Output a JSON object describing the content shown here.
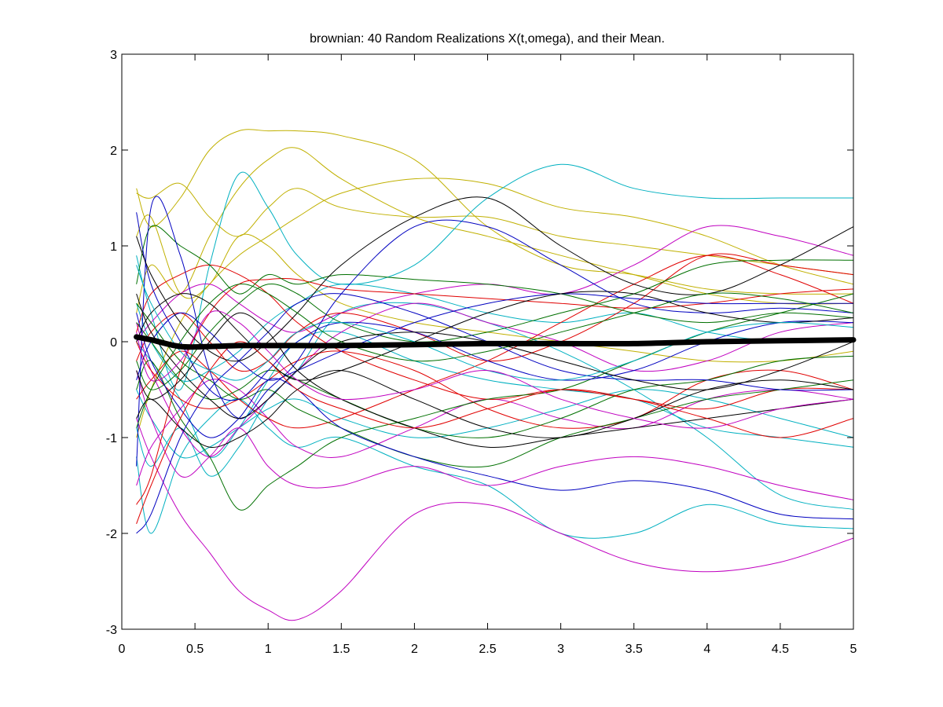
{
  "chart_data": {
    "type": "line",
    "title": "brownian: 40 Random Realizations X(t,omega), and their Mean.",
    "xlabel": "",
    "ylabel": "",
    "xlim": [
      0,
      5
    ],
    "ylim": [
      -3,
      3
    ],
    "xticks": [
      "0",
      "0.5",
      "1",
      "1.5",
      "2",
      "2.5",
      "3",
      "3.5",
      "4",
      "4.5",
      "5"
    ],
    "yticks": [
      "-3",
      "-2",
      "-1",
      "0",
      "1",
      "2",
      "3"
    ],
    "grid": false,
    "legend": "none",
    "x": [
      0.1,
      0.2,
      0.4,
      0.6,
      0.8,
      1.0,
      1.2,
      1.5,
      2.0,
      2.5,
      3.0,
      3.5,
      4.0,
      4.5,
      5.0
    ],
    "series": [
      {
        "color": "#c0b000",
        "values": [
          1.55,
          1.5,
          1.65,
          1.3,
          1.1,
          1.4,
          1.6,
          1.4,
          1.3,
          1.3,
          1.1,
          1.0,
          0.9,
          0.8,
          0.7
        ]
      },
      {
        "color": "#c0b000",
        "values": [
          1.6,
          1.2,
          1.5,
          2.0,
          2.2,
          2.2,
          2.2,
          2.15,
          1.9,
          1.2,
          0.8,
          0.7,
          0.55,
          0.5,
          0.5
        ]
      },
      {
        "color": "#c0b000",
        "values": [
          0.3,
          0.8,
          0.5,
          1.1,
          1.6,
          1.9,
          2.02,
          1.7,
          1.3,
          1.1,
          0.9,
          0.7,
          0.5,
          0.4,
          0.4
        ]
      },
      {
        "color": "#c0b000",
        "values": [
          1.1,
          1.3,
          0.5,
          0.6,
          1.1,
          1.0,
          0.7,
          0.4,
          0.2,
          0.1,
          0.0,
          -0.1,
          -0.2,
          -0.2,
          -0.1
        ]
      },
      {
        "color": "#c0b000",
        "values": [
          -1.0,
          -0.5,
          0.2,
          0.6,
          0.9,
          1.1,
          1.3,
          1.55,
          1.7,
          1.65,
          1.4,
          1.3,
          1.1,
          0.8,
          0.6
        ]
      },
      {
        "color": "#00b0c0",
        "values": [
          0.9,
          0.3,
          -0.5,
          0.8,
          1.75,
          1.4,
          0.9,
          0.6,
          0.8,
          1.5,
          1.85,
          1.6,
          1.5,
          1.5,
          1.5
        ]
      },
      {
        "color": "#00b0c0",
        "values": [
          -0.9,
          -1.3,
          -0.9,
          -1.4,
          -1.1,
          -0.6,
          -0.3,
          0.3,
          0.4,
          0.2,
          -0.1,
          -0.5,
          -1.0,
          -1.6,
          -1.75
        ]
      },
      {
        "color": "#00b0c0",
        "values": [
          -1.2,
          -2.0,
          -1.2,
          -0.8,
          -0.6,
          -0.9,
          -1.1,
          -1.0,
          -1.3,
          -1.5,
          -2.0,
          -2.0,
          -1.7,
          -1.9,
          -1.95
        ]
      },
      {
        "color": "#00b0c0",
        "values": [
          0.0,
          -0.2,
          -0.6,
          -1.2,
          -0.9,
          -0.4,
          0.0,
          0.1,
          -0.2,
          -0.4,
          -0.5,
          -0.6,
          -0.9,
          -1.0,
          -1.1
        ]
      },
      {
        "color": "#00b0c0",
        "values": [
          0.4,
          0.0,
          -0.4,
          -0.3,
          -0.1,
          0.2,
          0.4,
          0.6,
          0.5,
          0.3,
          0.2,
          0.3,
          0.1,
          0.0,
          0.0
        ]
      },
      {
        "color": "#00b0c0",
        "values": [
          -0.5,
          -0.8,
          -1.2,
          -1.1,
          -0.9,
          -0.7,
          -0.6,
          -0.8,
          -1.0,
          -0.9,
          -0.7,
          -0.5,
          -0.6,
          -0.8,
          -1.0
        ]
      },
      {
        "color": "#c000c0",
        "values": [
          -0.8,
          -1.2,
          -1.8,
          -2.2,
          -2.6,
          -2.8,
          -2.9,
          -2.6,
          -1.8,
          -1.7,
          -2.0,
          -2.3,
          -2.4,
          -2.3,
          -2.05
        ]
      },
      {
        "color": "#c000c0",
        "values": [
          -0.3,
          -0.8,
          -1.4,
          -1.2,
          -0.9,
          -1.3,
          -1.5,
          -1.5,
          -1.3,
          -1.5,
          -1.3,
          -1.2,
          -1.3,
          -1.5,
          -1.65
        ]
      },
      {
        "color": "#c000c0",
        "values": [
          0.0,
          0.2,
          0.5,
          0.6,
          0.4,
          0.2,
          0.1,
          0.3,
          0.5,
          0.6,
          0.5,
          0.8,
          1.2,
          1.1,
          0.9
        ]
      },
      {
        "color": "#c000c0",
        "values": [
          -1.5,
          -1.1,
          -0.7,
          -0.4,
          -0.5,
          -0.8,
          -1.1,
          -1.2,
          -0.9,
          -0.6,
          -0.8,
          -0.9,
          -0.6,
          -0.5,
          -0.6
        ]
      },
      {
        "color": "#c000c0",
        "values": [
          0.2,
          -0.3,
          -0.9,
          -1.2,
          -0.9,
          -0.6,
          -0.3,
          0.1,
          0.4,
          0.2,
          0.0,
          -0.3,
          -0.2,
          0.1,
          0.2
        ]
      },
      {
        "color": "#e00000",
        "values": [
          -1.7,
          -1.4,
          -0.3,
          0.3,
          0.6,
          0.65,
          0.65,
          0.55,
          0.5,
          0.45,
          0.4,
          0.35,
          0.4,
          0.5,
          0.55
        ]
      },
      {
        "color": "#e00000",
        "values": [
          0.1,
          0.5,
          0.7,
          0.8,
          0.7,
          0.5,
          0.2,
          -0.1,
          -0.4,
          -0.6,
          -0.5,
          -0.6,
          -0.7,
          -0.5,
          -0.5
        ]
      },
      {
        "color": "#e00000",
        "values": [
          -0.6,
          -0.4,
          -0.1,
          -0.3,
          -0.6,
          -0.8,
          -0.9,
          -0.8,
          -0.5,
          -0.2,
          0.2,
          0.6,
          0.9,
          0.7,
          0.4
        ]
      },
      {
        "color": "#e00000",
        "values": [
          0.0,
          -0.3,
          -0.6,
          -0.7,
          -0.6,
          -0.4,
          -0.2,
          -0.1,
          -0.3,
          -0.7,
          -0.9,
          -0.8,
          -0.4,
          -0.3,
          -0.5
        ]
      },
      {
        "color": "#e00000",
        "values": [
          -0.2,
          0.1,
          0.3,
          0.0,
          -0.3,
          -0.2,
          0.1,
          0.3,
          0.1,
          -0.2,
          0.0,
          0.4,
          0.9,
          0.8,
          0.7
        ]
      },
      {
        "color": "#007000",
        "values": [
          0.6,
          1.2,
          1.0,
          0.8,
          0.5,
          0.7,
          0.6,
          0.7,
          0.65,
          0.6,
          0.5,
          0.3,
          0.2,
          0.3,
          0.25
        ]
      },
      {
        "color": "#007000",
        "values": [
          -0.5,
          -0.2,
          -0.8,
          -1.2,
          -1.75,
          -1.5,
          -1.3,
          -1.0,
          -0.8,
          -0.6,
          -0.5,
          -0.2,
          0.1,
          0.3,
          0.5
        ]
      },
      {
        "color": "#007000",
        "values": [
          0.4,
          0.2,
          -0.2,
          -0.4,
          -0.6,
          -0.5,
          -0.7,
          -0.9,
          -1.2,
          -1.3,
          -1.0,
          -0.8,
          -0.6,
          -0.5,
          -0.4
        ]
      },
      {
        "color": "#007000",
        "values": [
          -0.2,
          -0.5,
          -0.3,
          0.1,
          0.4,
          0.6,
          0.5,
          0.2,
          0.0,
          0.1,
          0.3,
          0.5,
          0.8,
          0.85,
          0.85
        ]
      },
      {
        "color": "#007000",
        "values": [
          0.2,
          0.0,
          -0.4,
          -0.6,
          -0.5,
          -0.3,
          -0.4,
          -0.6,
          -0.9,
          -1.0,
          -0.8,
          -0.5,
          -0.4,
          -0.2,
          -0.15
        ]
      },
      {
        "color": "#0000c0",
        "values": [
          -1.3,
          1.4,
          0.9,
          -0.3,
          -0.8,
          -0.5,
          -0.2,
          0.5,
          1.2,
          1.2,
          0.8,
          0.4,
          0.3,
          0.35,
          0.3
        ]
      },
      {
        "color": "#0000c0",
        "values": [
          -2.0,
          -1.8,
          -1.0,
          -0.5,
          -0.2,
          0.1,
          0.4,
          0.5,
          0.3,
          0.0,
          -0.3,
          -0.4,
          -0.4,
          -0.5,
          -0.5
        ]
      },
      {
        "color": "#0000c0",
        "values": [
          0.3,
          -0.2,
          -0.7,
          -1.0,
          -0.8,
          -0.4,
          -0.5,
          -0.9,
          -1.2,
          -1.4,
          -1.55,
          -1.45,
          -1.55,
          -1.8,
          -1.85
        ]
      },
      {
        "color": "#0000c0",
        "values": [
          1.35,
          0.6,
          0.0,
          -0.5,
          -0.6,
          -0.3,
          0.0,
          0.2,
          0.1,
          -0.2,
          -0.4,
          -0.3,
          0.0,
          0.2,
          0.2
        ]
      },
      {
        "color": "#0000c0",
        "values": [
          -0.4,
          0.0,
          0.3,
          0.1,
          -0.2,
          -0.4,
          -0.3,
          -0.1,
          0.2,
          0.4,
          0.5,
          0.45,
          0.4,
          0.4,
          0.4
        ]
      },
      {
        "color": "#000000",
        "values": [
          1.1,
          0.7,
          0.2,
          -0.1,
          -0.2,
          0.0,
          0.3,
          0.8,
          1.3,
          1.5,
          1.0,
          0.6,
          0.5,
          0.8,
          1.2
        ]
      },
      {
        "color": "#000000",
        "values": [
          0.5,
          0.1,
          -0.3,
          -0.6,
          -0.8,
          -0.6,
          -0.3,
          0.0,
          0.1,
          0.0,
          -0.2,
          -0.4,
          -0.5,
          -0.3,
          0.0
        ]
      },
      {
        "color": "#000000",
        "values": [
          -0.8,
          -0.6,
          -0.9,
          -1.1,
          -1.0,
          -0.8,
          -0.5,
          -0.3,
          -0.6,
          -0.9,
          -1.0,
          -0.8,
          -0.5,
          -0.4,
          -0.5
        ]
      },
      {
        "color": "#000000",
        "values": [
          0.0,
          0.3,
          0.5,
          0.4,
          0.1,
          -0.2,
          -0.4,
          -0.3,
          0.0,
          0.3,
          0.5,
          0.5,
          0.3,
          0.2,
          0.25
        ]
      },
      {
        "color": "#000000",
        "values": [
          -0.3,
          -0.6,
          -0.4,
          0.0,
          0.3,
          0.1,
          -0.3,
          -0.6,
          -0.9,
          -1.1,
          -1.0,
          -0.9,
          -0.8,
          -0.7,
          -0.6
        ]
      },
      {
        "color": "#e00000",
        "values": [
          -1.9,
          -1.5,
          -0.8,
          -0.3,
          0.0,
          -0.2,
          -0.5,
          -0.7,
          -0.9,
          -0.7,
          -0.5,
          -0.6,
          -0.8,
          -1.0,
          -0.8
        ]
      },
      {
        "color": "#00b0c0",
        "values": [
          0.8,
          0.4,
          -0.1,
          -0.3,
          -0.4,
          -0.2,
          0.1,
          0.2,
          0.0,
          -0.3,
          -0.4,
          -0.2,
          0.1,
          0.2,
          0.15
        ]
      },
      {
        "color": "#c000c0",
        "values": [
          0.1,
          -0.4,
          -0.2,
          0.3,
          0.2,
          -0.1,
          -0.4,
          -0.6,
          -0.5,
          -0.3,
          -0.6,
          -0.8,
          -0.9,
          -0.7,
          -0.6
        ]
      },
      {
        "color": "#007000",
        "values": [
          -0.9,
          -0.5,
          0.0,
          0.4,
          0.6,
          0.5,
          0.3,
          0.0,
          -0.2,
          -0.1,
          0.1,
          0.3,
          0.5,
          0.45,
          0.3
        ]
      }
    ],
    "mean": {
      "color": "#000000",
      "values": [
        0.05,
        0.02,
        -0.05,
        -0.05,
        -0.04,
        -0.04,
        -0.04,
        -0.04,
        -0.03,
        -0.02,
        -0.02,
        -0.02,
        0.0,
        0.01,
        0.02
      ]
    }
  }
}
